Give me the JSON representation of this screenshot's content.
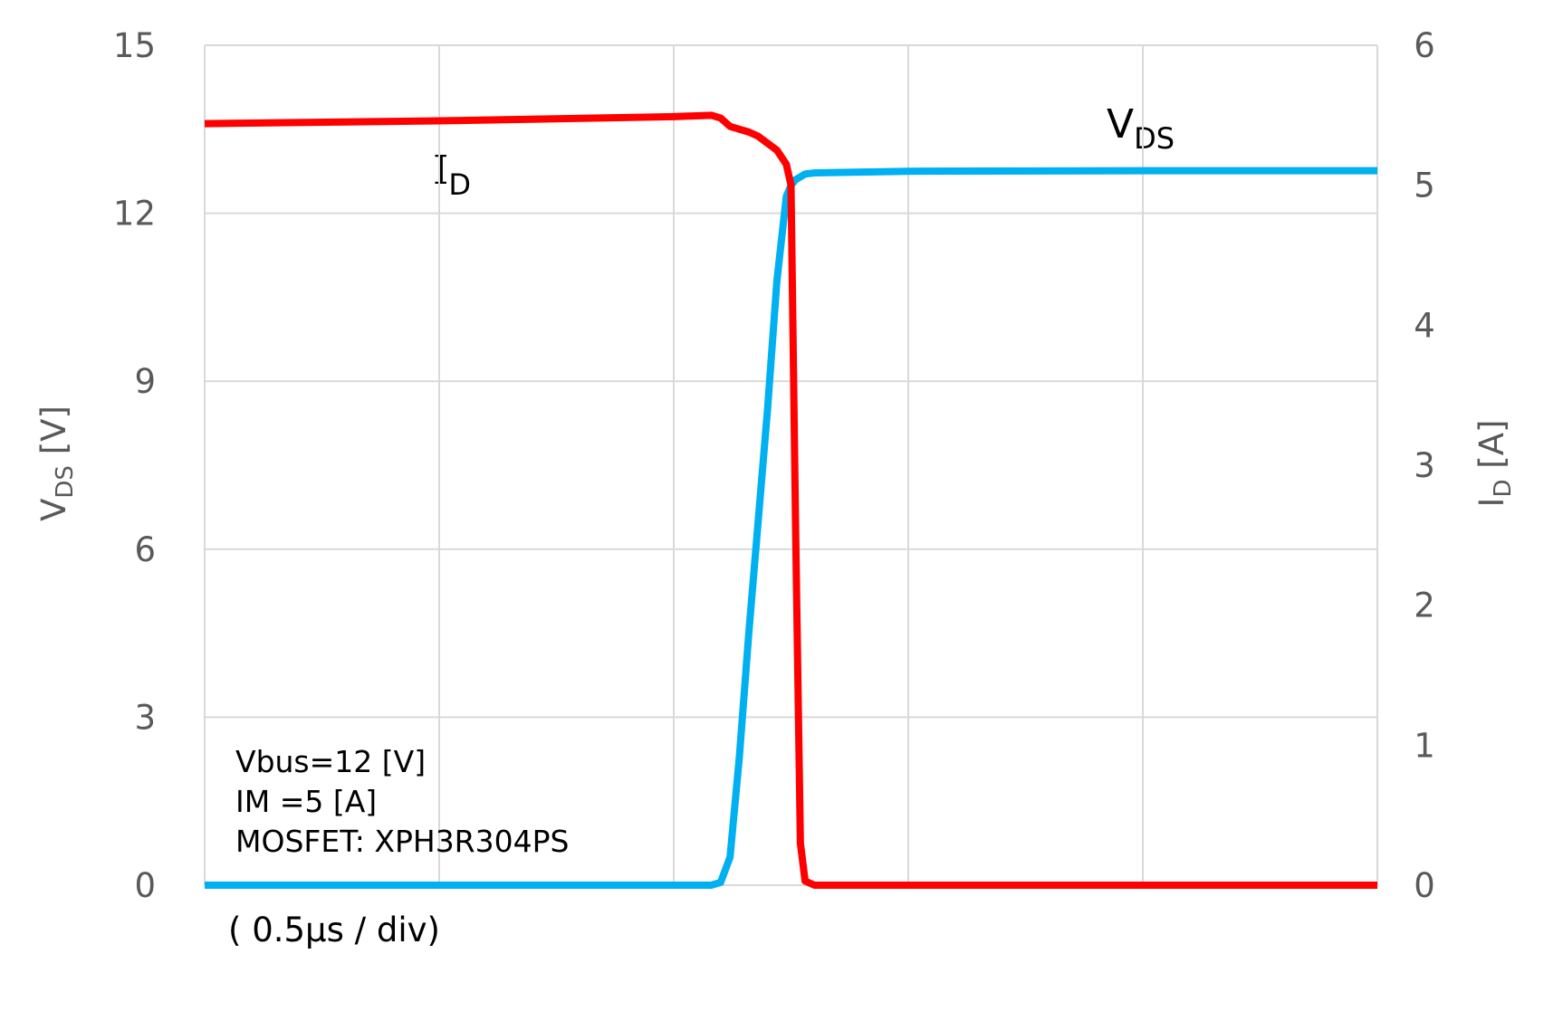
{
  "chart_data": {
    "type": "line",
    "x": [
      0,
      0.5,
      1.0,
      1.08,
      1.1,
      1.12,
      1.14,
      1.16,
      1.18,
      1.2,
      1.22,
      1.24,
      1.25,
      1.26,
      1.27,
      1.28,
      1.3,
      1.5,
      2.0,
      2.5
    ],
    "xlim": [
      0,
      2.5
    ],
    "xticks": [
      0,
      0.5,
      1.0,
      1.5,
      2.0,
      2.5
    ],
    "x_label": "( 0.5μs / div)",
    "ylim": [
      0,
      15
    ],
    "yticks": [
      0,
      3,
      6,
      9,
      12,
      15
    ],
    "y2lim": [
      0,
      6
    ],
    "y2ticks": [
      0,
      1,
      2,
      3,
      4,
      5,
      6
    ],
    "ylabel": {
      "main": "V",
      "sub": "DS",
      "unit": " [V]"
    },
    "y2label": {
      "main": "I",
      "sub": "D",
      "unit": " [A]"
    },
    "grid": true,
    "series": [
      {
        "name": "VDS",
        "color": "#00b0f0",
        "values": [
          0,
          0,
          0,
          0,
          0.05,
          0.5,
          2.3,
          4.5,
          6.5,
          8.5,
          10.8,
          12.3,
          12.5,
          12.6,
          12.65,
          12.7,
          12.72,
          12.75,
          12.76,
          12.76
        ]
      },
      {
        "name": "ID",
        "color": "#ff0000",
        "axis": "y2",
        "values": [
          5.44,
          5.46,
          5.49,
          5.5,
          5.48,
          5.42,
          5.4,
          5.38,
          5.35,
          5.3,
          5.25,
          5.15,
          5.0,
          2.5,
          0.3,
          0.03,
          0,
          0,
          0,
          0
        ]
      }
    ],
    "annotations": [
      {
        "main": "V",
        "sub": "DS"
      },
      {
        "main": "I",
        "sub": "D"
      }
    ],
    "notes": [
      "Vbus=12 [V]",
      "IM =5 [A]",
      "MOSFET: XPH3R304PS"
    ]
  }
}
